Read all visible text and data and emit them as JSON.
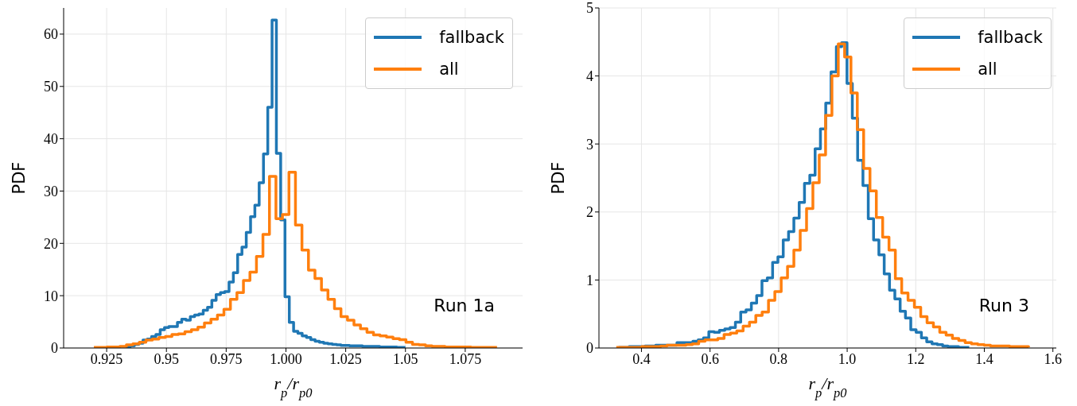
{
  "chart_data": [
    {
      "type": "step",
      "xlabel": "r$_{p}$/r$_{p0}$",
      "ylabel": "PDF",
      "xlim": [
        0.907,
        1.099
      ],
      "ylim": [
        0,
        65
      ],
      "xticks": [
        0.925,
        0.95,
        0.975,
        {
          "value": 1,
          "label": "1.000"
        },
        1.025,
        1.05,
        1.075
      ],
      "yticks": [
        0,
        10,
        20,
        30,
        40,
        50,
        60
      ],
      "grid": true,
      "legend": "top right",
      "annotations": [
        "Run 1a"
      ],
      "series": [
        {
          "name": "fallback",
          "color": "#1f77b4",
          "x": [
            0.933,
            0.9348,
            0.9366,
            0.9384,
            0.9402,
            0.942,
            0.9438,
            0.9456,
            0.9474,
            0.9492,
            0.951,
            0.9528,
            0.9546,
            0.9564,
            0.9582,
            0.96,
            0.9618,
            0.9636,
            0.9654,
            0.9672,
            0.969,
            0.9708,
            0.9726,
            0.9744,
            0.9762,
            0.978,
            0.9798,
            0.9816,
            0.9834,
            0.9852,
            0.987,
            0.9888,
            0.9906,
            0.9924,
            0.9942,
            0.996,
            0.9978,
            0.9996,
            1.0014,
            1.0032,
            1.005,
            1.0068,
            1.0086,
            1.0104,
            1.0122,
            1.014,
            1.0158,
            1.0176,
            1.0194,
            1.0212,
            1.023,
            1.0248,
            1.0266,
            1.0284,
            1.0302,
            1.032,
            1.0338,
            1.0356,
            1.0374,
            1.0392,
            1.041,
            1.0428,
            1.0446,
            1.0464,
            1.0482,
            1.05
          ],
          "values": [
            0.2,
            0.4,
            0.7,
            0.9,
            1.5,
            1.7,
            2.2,
            2.6,
            3.5,
            3.9,
            4.1,
            4.1,
            4.9,
            5.5,
            5.3,
            6.0,
            6.3,
            6.5,
            7.2,
            7.8,
            9.1,
            10.2,
            10.6,
            10.8,
            12.6,
            14.4,
            17.9,
            19.3,
            22.1,
            25.1,
            27.3,
            31.6,
            37.1,
            46.0,
            62.7,
            37.2,
            24.5,
            9.8,
            4.9,
            3.2,
            2.8,
            2.3,
            2.0,
            1.6,
            1.3,
            1.1,
            0.9,
            0.8,
            0.7,
            0.6,
            0.5,
            0.5,
            0.4,
            0.4,
            0.4,
            0.3,
            0.3,
            0.3,
            0.3,
            0.2,
            0.2,
            0.2,
            0.2,
            0.1,
            0.1,
            0.1
          ]
        },
        {
          "name": "all",
          "color": "#ff7f0e",
          "x": [
            0.91966,
            0.92238,
            0.9251,
            0.92782,
            0.93054,
            0.93326,
            0.93598,
            0.9387,
            0.94142,
            0.94414,
            0.94686,
            0.94958,
            0.9523,
            0.95502,
            0.95774,
            0.96046,
            0.96318,
            0.9659,
            0.96862,
            0.97134,
            0.97406,
            0.97678,
            0.9795,
            0.98222,
            0.98494,
            0.98766,
            0.99038,
            0.9931,
            0.99582,
            0.99854,
            1.00126,
            1.00398,
            1.0067,
            1.00942,
            1.01214,
            1.01486,
            1.01758,
            1.0203,
            1.02302,
            1.02574,
            1.02846,
            1.03118,
            1.0339,
            1.03662,
            1.03934,
            1.04206,
            1.04478,
            1.0475,
            1.05022,
            1.05294,
            1.05566,
            1.05838,
            1.0611,
            1.06382,
            1.06654,
            1.06926,
            1.07198,
            1.0747,
            1.07742,
            1.08014,
            1.08286,
            1.08558,
            1.0883
          ],
          "values": [
            0.1,
            0.1,
            0.2,
            0.2,
            0.3,
            0.6,
            0.8,
            1.1,
            1.5,
            1.7,
            2.0,
            2.2,
            2.6,
            2.7,
            3.1,
            3.5,
            4.0,
            4.8,
            5.5,
            6.3,
            7.4,
            9.3,
            10.6,
            12.9,
            14.5,
            17.5,
            21.7,
            32.8,
            24.7,
            25.5,
            33.6,
            23.5,
            18.7,
            14.9,
            13.3,
            11.1,
            9.3,
            7.5,
            6.0,
            5.3,
            4.4,
            3.7,
            3.0,
            2.5,
            2.3,
            2.1,
            1.8,
            1.6,
            1.1,
            0.7,
            0.6,
            0.4,
            0.3,
            0.3,
            0.2,
            0.2,
            0.2,
            0.2,
            0.1,
            0.1,
            0.1,
            0.1,
            0.1
          ]
        }
      ]
    },
    {
      "type": "step",
      "xlabel": "r$_{p}$/r$_{p0}$",
      "ylabel": "PDF",
      "xlim": [
        0.276,
        1.61
      ],
      "ylim": [
        0,
        5
      ],
      "xticks": [
        0.4,
        0.6,
        0.8,
        {
          "value": 1,
          "label": "1.0"
        },
        1.2,
        1.4,
        1.6
      ],
      "yticks": [
        0,
        1,
        2,
        3,
        4,
        5
      ],
      "grid": true,
      "legend": "top right",
      "annotations": [
        "Run 3"
      ],
      "series": [
        {
          "name": "fallback",
          "color": "#1f77b4",
          "x": [
            0.333,
            0.3485,
            0.364,
            0.3795,
            0.395,
            0.4105,
            0.426,
            0.4415,
            0.457,
            0.4725,
            0.488,
            0.5035,
            0.519,
            0.5345,
            0.55,
            0.5655,
            0.581,
            0.5965,
            0.612,
            0.6275,
            0.643,
            0.6585,
            0.674,
            0.6895,
            0.705,
            0.7205,
            0.736,
            0.7515,
            0.767,
            0.7825,
            0.798,
            0.8135,
            0.829,
            0.8445,
            0.86,
            0.8755,
            0.891,
            0.9065,
            0.922,
            0.9375,
            0.953,
            0.9685,
            0.984,
            0.9995,
            1.015,
            1.0305,
            1.046,
            1.0615,
            1.077,
            1.0925,
            1.108,
            1.1235,
            1.139,
            1.1545,
            1.17,
            1.1855,
            1.201,
            1.2165,
            1.232,
            1.2475,
            1.263,
            1.2785,
            1.294,
            1.3095,
            1.325,
            1.3405,
            1.356
          ],
          "values": [
            0.01,
            0.01,
            0.02,
            0.02,
            0.02,
            0.03,
            0.03,
            0.04,
            0.04,
            0.04,
            0.04,
            0.08,
            0.08,
            0.08,
            0.1,
            0.12,
            0.15,
            0.24,
            0.23,
            0.26,
            0.28,
            0.3,
            0.38,
            0.53,
            0.56,
            0.66,
            0.77,
            0.99,
            1.03,
            1.26,
            1.34,
            1.59,
            1.71,
            1.91,
            2.14,
            2.42,
            2.54,
            2.93,
            3.22,
            3.6,
            4.06,
            4.43,
            4.49,
            3.89,
            3.38,
            2.76,
            2.39,
            1.9,
            1.59,
            1.37,
            1.09,
            0.85,
            0.72,
            0.54,
            0.44,
            0.27,
            0.23,
            0.15,
            0.09,
            0.06,
            0.05,
            0.03,
            0.02,
            0.02,
            0.01,
            0.01,
            0.01
          ]
        },
        {
          "name": "all",
          "color": "#ff7f0e",
          "x": [
            0.3265,
            0.345,
            0.3635,
            0.382,
            0.4005,
            0.419,
            0.4375,
            0.456,
            0.4745,
            0.493,
            0.5115,
            0.53,
            0.5485,
            0.567,
            0.5855,
            0.604,
            0.6225,
            0.641,
            0.6595,
            0.678,
            0.6965,
            0.715,
            0.7335,
            0.752,
            0.7705,
            0.789,
            0.8075,
            0.826,
            0.8445,
            0.863,
            0.8815,
            0.9,
            0.9185,
            0.937,
            0.9555,
            0.974,
            0.9925,
            1.011,
            1.0295,
            1.048,
            1.0665,
            1.085,
            1.1035,
            1.122,
            1.1405,
            1.159,
            1.1775,
            1.196,
            1.2145,
            1.233,
            1.2515,
            1.27,
            1.2885,
            1.307,
            1.3255,
            1.344,
            1.3625,
            1.381,
            1.3995,
            1.418,
            1.4365,
            1.455,
            1.4735,
            1.492,
            1.5105,
            1.529
          ],
          "values": [
            0.01,
            0.01,
            0.01,
            0.01,
            0.02,
            0.02,
            0.02,
            0.03,
            0.04,
            0.04,
            0.04,
            0.05,
            0.06,
            0.1,
            0.12,
            0.12,
            0.14,
            0.2,
            0.22,
            0.25,
            0.32,
            0.38,
            0.48,
            0.53,
            0.7,
            0.83,
            1.03,
            1.2,
            1.44,
            1.73,
            2.05,
            2.43,
            2.84,
            3.42,
            4.0,
            4.47,
            4.28,
            3.75,
            3.21,
            2.64,
            2.31,
            1.92,
            1.63,
            1.44,
            1.02,
            0.81,
            0.7,
            0.6,
            0.46,
            0.37,
            0.31,
            0.23,
            0.19,
            0.14,
            0.11,
            0.08,
            0.06,
            0.05,
            0.04,
            0.03,
            0.03,
            0.03,
            0.02,
            0.02,
            0.02,
            0.01
          ]
        }
      ]
    }
  ]
}
